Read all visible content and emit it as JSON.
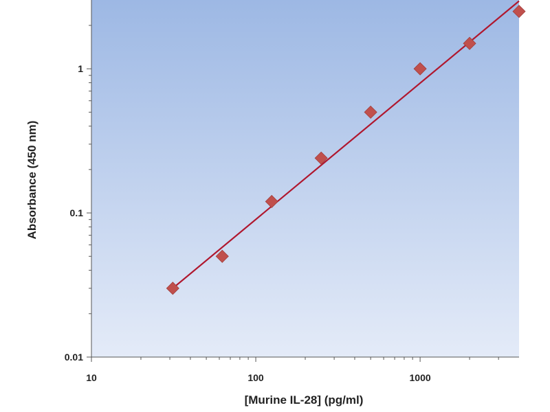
{
  "chart_data": {
    "type": "scatter",
    "title": "",
    "xlabel": "[Murine IL-28] (pg/ml)",
    "ylabel": "Absorbance (450 nm)",
    "xscale": "log",
    "yscale": "log",
    "xlim": [
      10,
      4000
    ],
    "ylim": [
      0.01,
      3
    ],
    "x_ticks": [
      10,
      100,
      1000
    ],
    "x_tick_labels": [
      "10",
      "100",
      "1000"
    ],
    "y_ticks": [
      0.01,
      0.1,
      1
    ],
    "y_tick_labels": [
      "0.01",
      "0.1",
      "1"
    ],
    "grid": false,
    "legend": "none",
    "series": [
      {
        "marker": "diamond",
        "color": "#c0504d",
        "x": [
          31.25,
          62.5,
          125,
          250,
          500,
          1000,
          2000,
          4000
        ],
        "y": [
          0.03,
          0.05,
          0.12,
          0.24,
          0.5,
          1.0,
          1.5,
          2.5
        ]
      }
    ],
    "fit_line": {
      "color": "#b0172e",
      "x": [
        31.25,
        4000
      ],
      "y": [
        0.03,
        2.95
      ]
    },
    "plot_background": {
      "gradient_top": "#9db8e4",
      "gradient_bottom": "#e4ebf8"
    }
  }
}
